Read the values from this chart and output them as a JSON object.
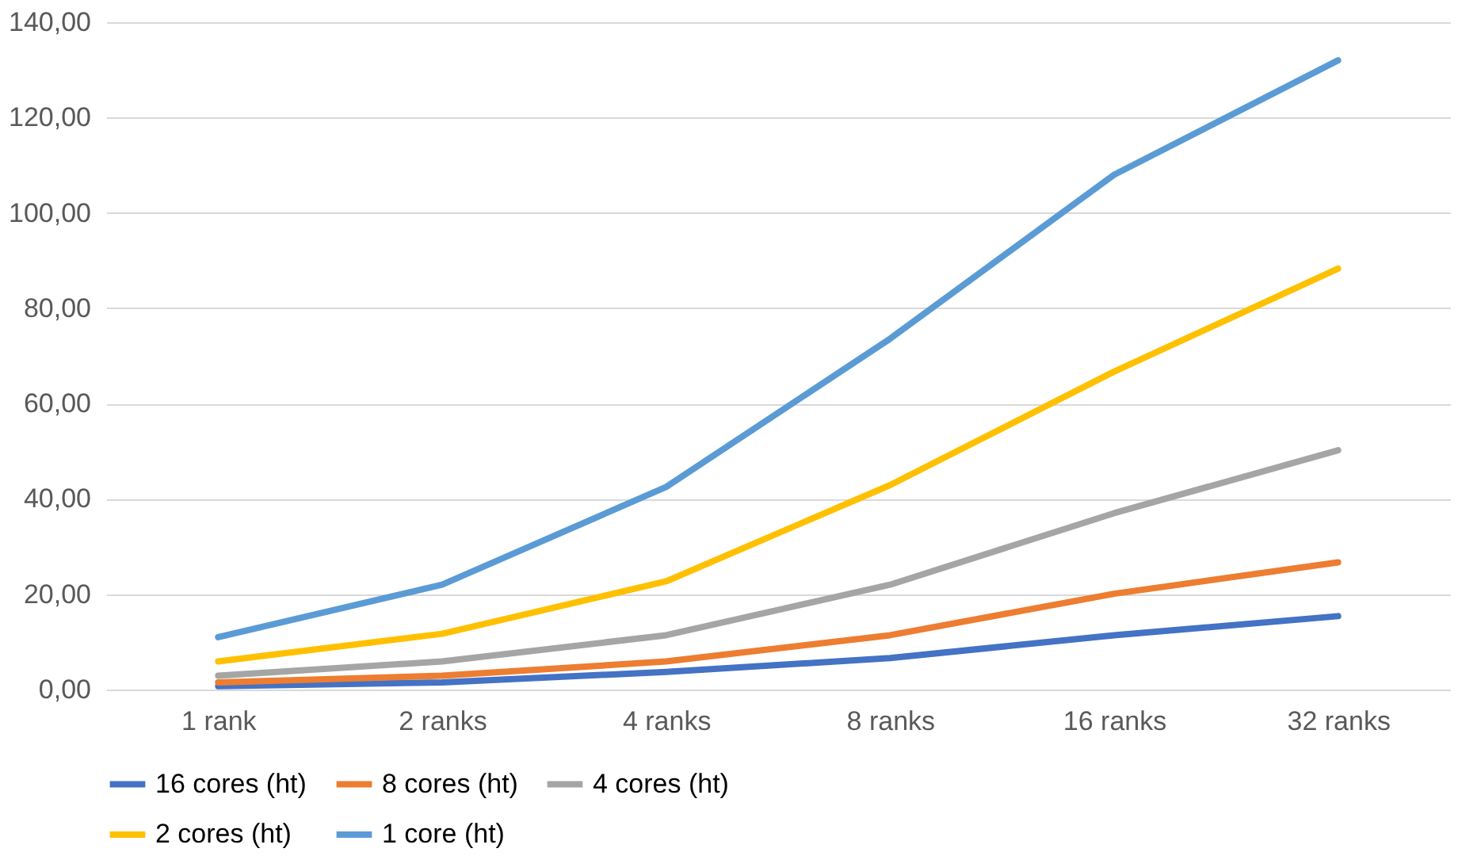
{
  "chart_data": {
    "type": "line",
    "categories": [
      "1 rank",
      "2 ranks",
      "4 ranks",
      "8 ranks",
      "16 ranks",
      "32 ranks"
    ],
    "series": [
      {
        "name": "16 cores (ht)",
        "color": "#4472c4",
        "values": [
          0.7,
          1.5,
          3.7,
          6.6,
          11.4,
          15.4
        ]
      },
      {
        "name": "8 cores (ht)",
        "color": "#ed7d31",
        "values": [
          1.5,
          2.9,
          5.9,
          11.4,
          20.1,
          26.7
        ]
      },
      {
        "name": "4 cores (ht)",
        "color": "#a5a5a5",
        "values": [
          2.9,
          5.9,
          11.4,
          22,
          37,
          50.2
        ]
      },
      {
        "name": "2 cores (ht)",
        "color": "#ffc000",
        "values": [
          5.9,
          11.7,
          22.7,
          42.9,
          66.7,
          88.3
        ]
      },
      {
        "name": "1 core (ht)",
        "color": "#5b9bd5",
        "values": [
          11,
          22,
          42.5,
          73.6,
          108,
          132
        ]
      }
    ],
    "ylim": [
      0,
      140
    ],
    "yticks": [
      {
        "value": 0,
        "label": "0,00"
      },
      {
        "value": 20,
        "label": "20,00"
      },
      {
        "value": 40,
        "label": "40,00"
      },
      {
        "value": 60,
        "label": "60,00"
      },
      {
        "value": 80,
        "label": "80,00"
      },
      {
        "value": 100,
        "label": "100,00"
      },
      {
        "value": 120,
        "label": "120,00"
      },
      {
        "value": 140,
        "label": "140,00"
      }
    ],
    "grid": "y",
    "legend": "bottom",
    "marker": "none",
    "line_style": "solid"
  }
}
